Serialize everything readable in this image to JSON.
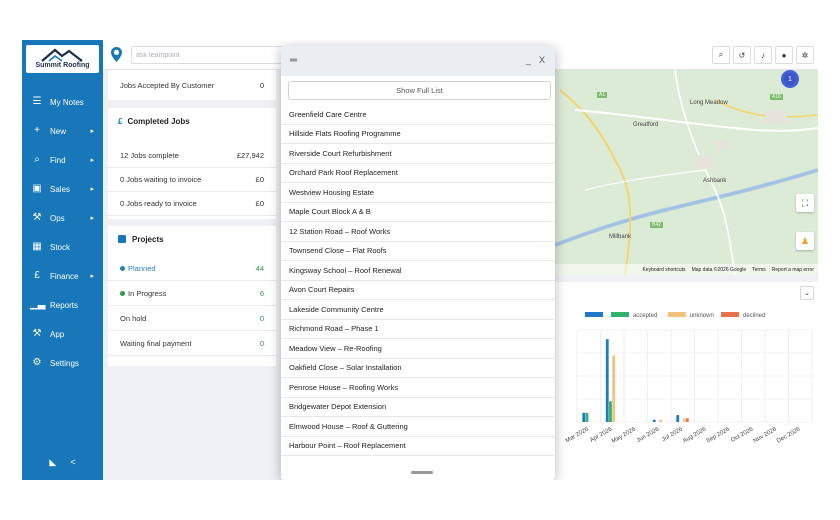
{
  "brand": {
    "name": "Summit Roofing"
  },
  "sidebar": {
    "items": [
      {
        "label": "My Notes",
        "icon": "list-icon",
        "glyph": "☰",
        "chevron": false
      },
      {
        "label": "New",
        "icon": "plus-icon",
        "glyph": "+",
        "chevron": true
      },
      {
        "label": "Find",
        "icon": "search-icon",
        "glyph": "⌕",
        "chevron": true
      },
      {
        "label": "Sales",
        "icon": "briefcase-icon",
        "glyph": "▣",
        "chevron": true
      },
      {
        "label": "Ops",
        "icon": "wrench-icon",
        "glyph": "⚒",
        "chevron": true
      },
      {
        "label": "Stock",
        "icon": "warehouse-icon",
        "glyph": "▦",
        "chevron": false
      },
      {
        "label": "Finance",
        "icon": "pound-icon",
        "glyph": "£",
        "chevron": true
      },
      {
        "label": "Reports",
        "icon": "chart-icon",
        "glyph": "▁▃",
        "chevron": false
      },
      {
        "label": "App",
        "icon": "wrench-icon",
        "glyph": "⚒",
        "chevron": false
      },
      {
        "label": "Settings",
        "icon": "gear-icon",
        "glyph": "⚙",
        "chevron": false
      }
    ],
    "chevron_glyph": "▸",
    "footer": {
      "rss_glyph": "◣",
      "share_glyph": "<"
    }
  },
  "topbar": {
    "search_placeholder": "ask teampoint",
    "icons": [
      {
        "name": "search-icon",
        "glyph": "⌕"
      },
      {
        "name": "history-icon",
        "glyph": "↺"
      },
      {
        "name": "bell-icon",
        "glyph": "♪"
      },
      {
        "name": "user-icon",
        "glyph": "●"
      },
      {
        "name": "settings-icon",
        "glyph": "✲"
      }
    ]
  },
  "jobs_panel": {
    "accepted_label": "Jobs Accepted By Customer",
    "accepted_value": "0"
  },
  "completed_panel": {
    "icon": "£",
    "title": "Completed Jobs",
    "rows": [
      {
        "label": "12 Jobs complete",
        "value": "£27,942"
      },
      {
        "label": "0 Jobs waiting to invoice",
        "value": "£0"
      },
      {
        "label": "0 Jobs ready to invoice",
        "value": "£0"
      }
    ]
  },
  "projects_panel": {
    "title": "Projects",
    "rows": [
      {
        "label": "Planned",
        "value": "44",
        "color": "#2a7fc1",
        "value_color": "#2e9b43",
        "dot": true
      },
      {
        "label": "In Progress",
        "value": "6",
        "color": "#333333",
        "value_color": "#2e9b43",
        "dot": true,
        "dot_color": "#2e9b43"
      },
      {
        "label": "On hold",
        "value": "0",
        "color": "#333333",
        "value_color": "#2a7fc1",
        "dot": false
      },
      {
        "label": "Waiting final payment",
        "value": "0",
        "color": "#333333",
        "value_color": "#2a7fc1",
        "dot": false
      }
    ]
  },
  "map": {
    "labels": [
      "Long Meadow",
      "Greatford",
      "Ashbank",
      "Millbank"
    ],
    "road_badges": [
      "A1",
      "A16",
      "B42"
    ],
    "cluster_count": "1",
    "footer": [
      "Keyboard shortcuts",
      "Map data ©2026 Google",
      "Terms",
      "Report a map error"
    ]
  },
  "modal": {
    "menu_glyph": "═",
    "minimize_glyph": "_",
    "close_glyph": "X",
    "show_full_list_label": "Show Full List",
    "jobs": [
      "Greenfield Care Centre",
      "Hillside Flats Roofing Programme",
      "Riverside Court Refurbishment",
      "Orchard Park Roof Replacement",
      "Westview Housing Estate",
      "Maple Court Block A & B",
      "12 Station Road – Roof Works",
      "Townsend Close – Flat Roofs",
      "Kingsway School – Roof Renewal",
      "Avon Court Repairs",
      "Lakeside Community Centre",
      "Richmond Road – Phase 1",
      "Meadow View – Re-Roofing",
      "Oakfield Close – Solar Installation",
      "Penrose House – Roofing Works",
      "Bridgewater Depot Extension",
      "Elmwood House – Roof & Guttering",
      "Harbour Point – Roof Replacement"
    ]
  },
  "chart_data": {
    "type": "bar",
    "categories": [
      "Mar 2026",
      "Apr 2026",
      "May 2026",
      "Jun 2026",
      "Jul 2026",
      "Aug 2026",
      "Sep 2026",
      "Oct 2026",
      "Nov 2026",
      "Dec 2026"
    ],
    "series": [
      {
        "name": "",
        "color": "#1f78c8",
        "values": [
          2,
          18,
          0,
          0.5,
          1.5,
          0,
          0,
          0,
          0,
          0
        ]
      },
      {
        "name": "accepted",
        "color": "#2fb36d",
        "values": [
          2,
          4.5,
          0,
          0,
          0,
          0,
          0,
          0,
          0,
          0
        ]
      },
      {
        "name": "unknown",
        "color": "#f5c27a",
        "values": [
          0,
          14.5,
          0,
          0.5,
          0.8,
          0,
          0,
          0,
          0,
          0
        ]
      },
      {
        "name": "declined",
        "color": "#e8744a",
        "values": [
          0,
          0,
          0,
          0,
          0.8,
          0,
          0,
          0,
          0,
          0
        ]
      }
    ],
    "ylim": [
      0,
      20
    ],
    "grid": true,
    "legend": "top",
    "xlabel": "",
    "ylabel": "",
    "title": ""
  }
}
